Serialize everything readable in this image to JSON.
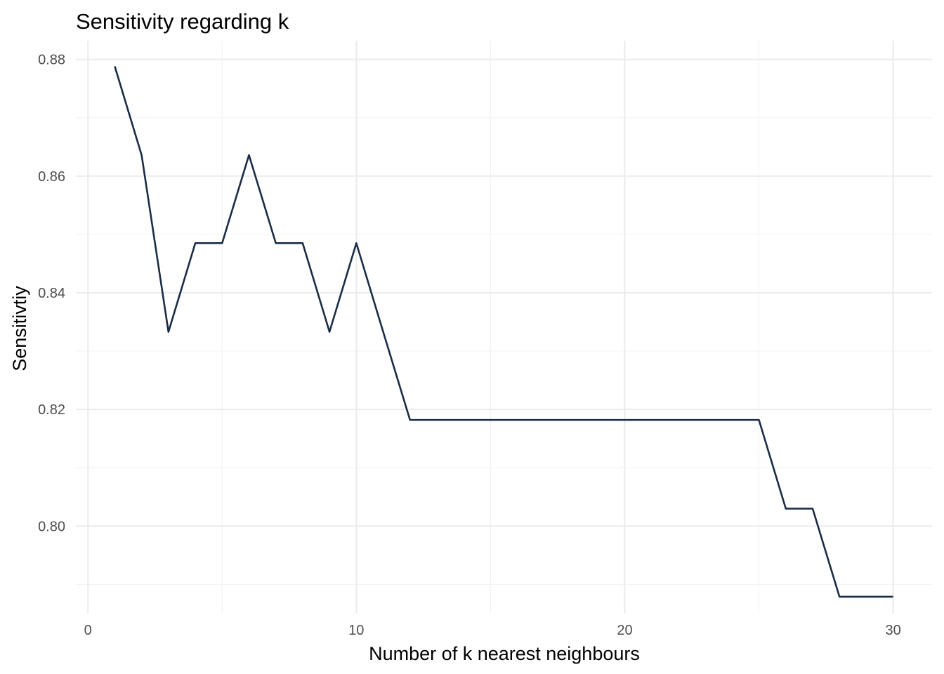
{
  "chart_data": {
    "type": "line",
    "title": "Sensitivity regarding k",
    "xlabel": "Number of k nearest neighbours",
    "ylabel": "Sensitivtiy",
    "xlim": [
      -0.45,
      31.45
    ],
    "ylim": [
      0.785,
      0.8832
    ],
    "x_ticks": [
      0,
      10,
      20,
      30
    ],
    "x_tick_labels": [
      "0",
      "10",
      "20",
      "30"
    ],
    "x_minor_ticks": [
      5,
      15,
      25
    ],
    "y_ticks": [
      0.8,
      0.82,
      0.84,
      0.86,
      0.88
    ],
    "y_tick_labels": [
      "0.80",
      "0.82",
      "0.84",
      "0.86",
      "0.88"
    ],
    "y_minor_ticks": [
      0.79,
      0.81,
      0.83,
      0.85,
      0.87
    ],
    "grid": true,
    "legend": "none",
    "line_color": "#1b2d45",
    "series": [
      {
        "x": [
          1,
          2,
          3,
          4,
          5,
          6,
          7,
          8,
          9,
          10,
          11,
          12,
          13,
          14,
          15,
          16,
          17,
          18,
          19,
          20,
          21,
          22,
          23,
          24,
          25,
          26,
          27,
          28,
          29,
          30
        ],
        "values": [
          0.8788,
          0.8636,
          0.8333,
          0.8485,
          0.8485,
          0.8636,
          0.8485,
          0.8485,
          0.8333,
          0.8485,
          0.8333,
          0.8182,
          0.8182,
          0.8182,
          0.8182,
          0.8182,
          0.8182,
          0.8182,
          0.8182,
          0.8182,
          0.8182,
          0.8182,
          0.8182,
          0.8182,
          0.8182,
          0.803,
          0.803,
          0.7879,
          0.7879,
          0.7879
        ]
      }
    ]
  }
}
